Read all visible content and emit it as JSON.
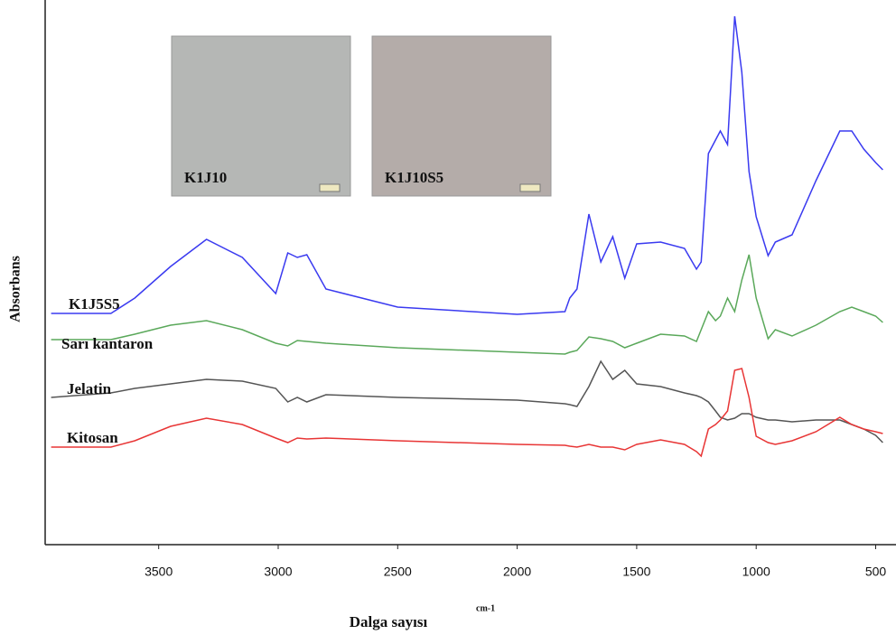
{
  "chart_data": {
    "type": "line",
    "x_label": "Dalga sayısı",
    "x_label_unit": "cm-1",
    "y_label": "Absorbans",
    "insets": [
      {
        "label": "K1J10",
        "color": "#b5b7b5"
      },
      {
        "label": "K1J10S5",
        "color": "#b4aca9"
      }
    ],
    "x": [
      3950,
      3700,
      3600,
      3450,
      3300,
      3150,
      3010,
      2960,
      2920,
      2880,
      2800,
      2500,
      2000,
      1800,
      1780,
      1750,
      1700,
      1650,
      1600,
      1550,
      1500,
      1400,
      1300,
      1250,
      1230,
      1200,
      1170,
      1150,
      1120,
      1090,
      1060,
      1030,
      1000,
      950,
      920,
      850,
      750,
      650,
      600,
      550,
      500,
      470
    ],
    "series": [
      {
        "name": "K1J5S5",
        "color": "#3a3af0",
        "values": [
          256,
          256,
          273,
          308,
          338,
          318,
          278,
          323,
          318,
          321,
          283,
          263,
          255,
          258,
          273,
          283,
          366,
          313,
          341,
          295,
          333,
          335,
          328,
          305,
          313,
          433,
          448,
          458,
          443,
          585,
          523,
          413,
          363,
          320,
          335,
          343,
          403,
          458,
          458,
          438,
          423,
          415
        ]
      },
      {
        "name": "Sarı kantaron",
        "color": "#5aa85a",
        "values": [
          227,
          227,
          233,
          243,
          248,
          238,
          223,
          220,
          226,
          225,
          223,
          218,
          213,
          211,
          213,
          215,
          230,
          228,
          225,
          218,
          223,
          233,
          231,
          225,
          238,
          258,
          248,
          253,
          273,
          258,
          293,
          321,
          273,
          228,
          238,
          231,
          243,
          258,
          263,
          258,
          253,
          246
        ]
      },
      {
        "name": "Jelatin",
        "color": "#555555",
        "values": [
          163,
          168,
          173,
          178,
          183,
          181,
          173,
          158,
          163,
          158,
          166,
          163,
          160,
          156,
          155,
          153,
          175,
          203,
          183,
          193,
          178,
          175,
          168,
          165,
          163,
          158,
          148,
          141,
          138,
          140,
          145,
          145,
          141,
          138,
          138,
          136,
          138,
          138,
          133,
          128,
          121,
          113
        ]
      },
      {
        "name": "Kitosan",
        "color": "#e83535",
        "values": [
          108,
          108,
          115,
          131,
          140,
          133,
          118,
          113,
          118,
          117,
          118,
          115,
          111,
          110,
          109,
          108,
          111,
          108,
          108,
          105,
          111,
          116,
          111,
          103,
          98,
          128,
          133,
          138,
          148,
          193,
          195,
          163,
          120,
          113,
          111,
          115,
          125,
          141,
          133,
          128,
          125,
          123
        ]
      }
    ],
    "xlim": [
      3975,
      415
    ],
    "xticks": [
      3500,
      3000,
      2500,
      2000,
      1500,
      1000,
      500
    ],
    "ylim": [
      0,
      603
    ]
  }
}
